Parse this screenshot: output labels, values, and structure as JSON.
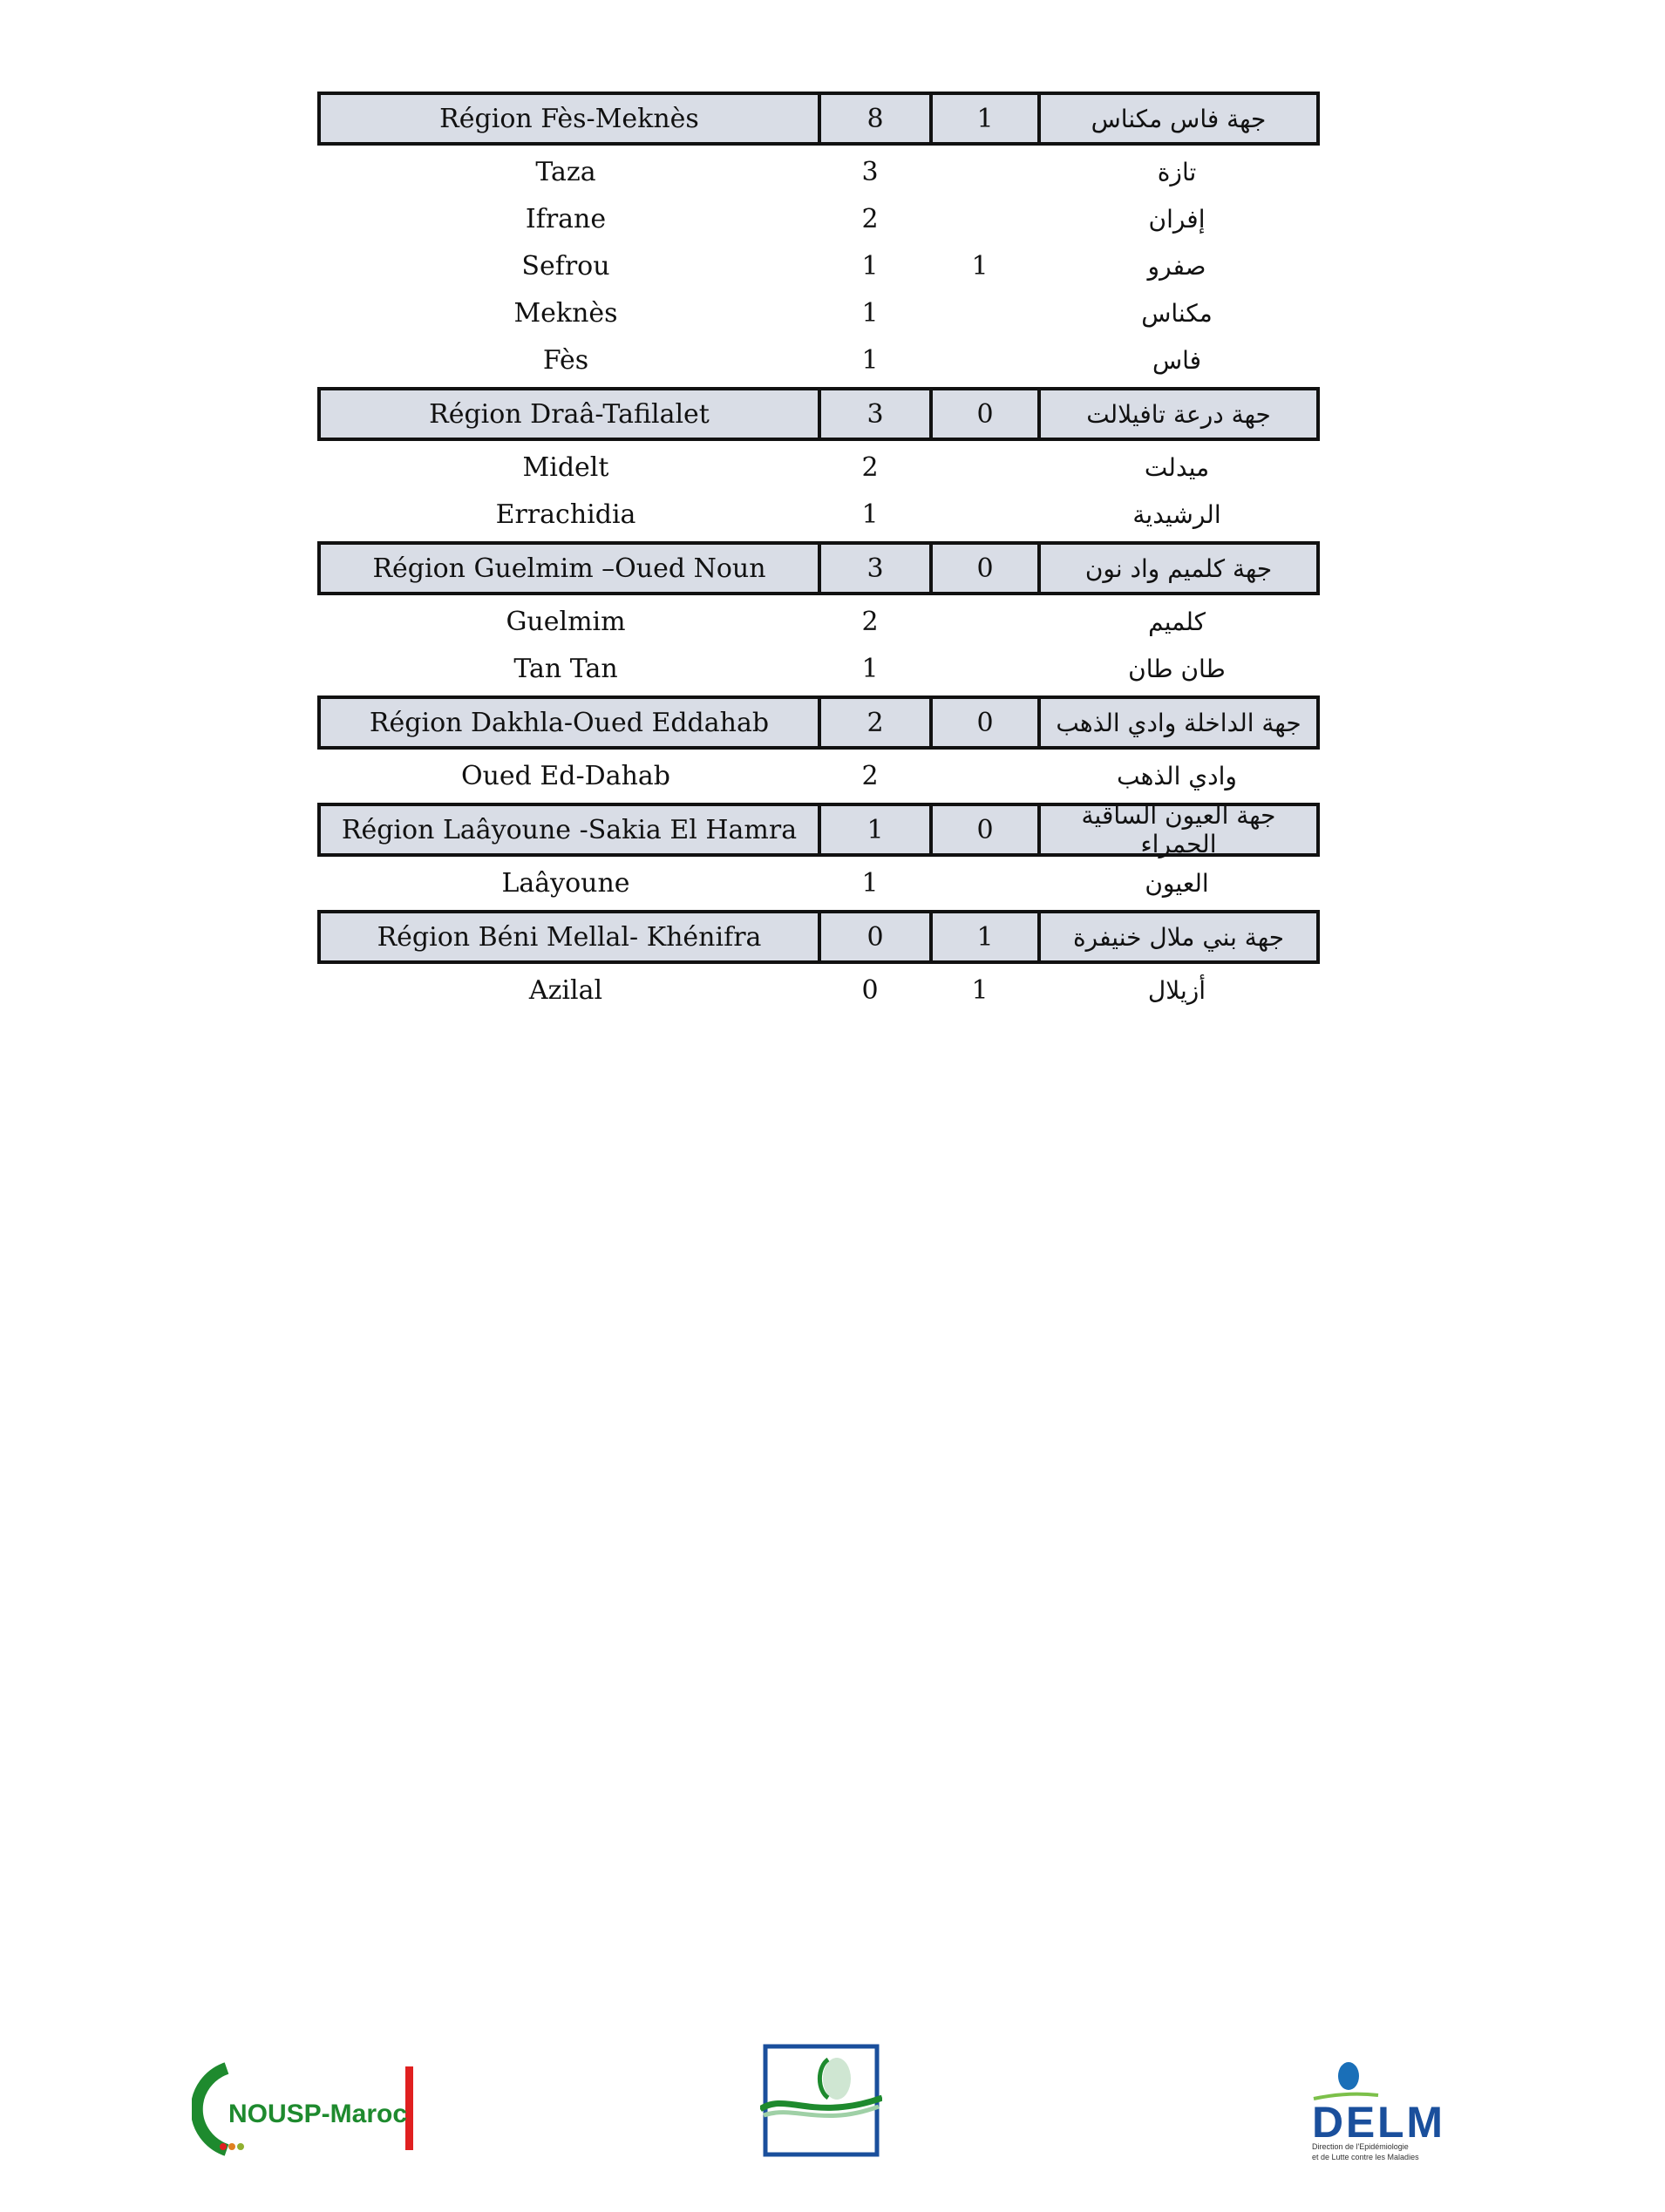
{
  "table": [
    {
      "type": "region",
      "fr": "Région Fès-Meknès",
      "a": "8",
      "b": "1",
      "ar": "جهة فاس مكناس"
    },
    {
      "type": "province",
      "fr": "Taza",
      "a": "3",
      "b": "",
      "ar": "تازة"
    },
    {
      "type": "province",
      "fr": "Ifrane",
      "a": "2",
      "b": "",
      "ar": "إفران"
    },
    {
      "type": "province",
      "fr": "Sefrou",
      "a": "1",
      "b": "1",
      "ar": "صفرو"
    },
    {
      "type": "province",
      "fr": "Meknès",
      "a": "1",
      "b": "",
      "ar": "مكناس"
    },
    {
      "type": "province",
      "fr": "Fès",
      "a": "1",
      "b": "",
      "ar": "فاس"
    },
    {
      "type": "region",
      "fr": "Région Draâ-Tafilalet",
      "a": "3",
      "b": "0",
      "ar": "جهة درعة تافيلالت"
    },
    {
      "type": "province",
      "fr": "Midelt",
      "a": "2",
      "b": "",
      "ar": "ميدلت"
    },
    {
      "type": "province",
      "fr": "Errachidia",
      "a": "1",
      "b": "",
      "ar": "الرشيدية"
    },
    {
      "type": "region",
      "fr": "Région Guelmim –Oued Noun",
      "a": "3",
      "b": "0",
      "ar": "جهة كلميم واد نون"
    },
    {
      "type": "province",
      "fr": "Guelmim",
      "a": "2",
      "b": "",
      "ar": "كلميم"
    },
    {
      "type": "province",
      "fr": "Tan Tan",
      "a": "1",
      "b": "",
      "ar": "طان طان"
    },
    {
      "type": "region",
      "fr": "Région Dakhla-Oued Eddahab",
      "a": "2",
      "b": "0",
      "ar": "جهة الداخلة وادي الذهب"
    },
    {
      "type": "province",
      "fr": "Oued Ed-Dahab",
      "a": "2",
      "b": "",
      "ar": "وادي الذهب"
    },
    {
      "type": "region",
      "fr": "Région Laâyoune -Sakia El Hamra",
      "a": "1",
      "b": "0",
      "ar": "جهة العيون الساقية الحمراء"
    },
    {
      "type": "province",
      "fr": "Laâyoune",
      "a": "1",
      "b": "",
      "ar": "العيون"
    },
    {
      "type": "region",
      "fr": "Région Béni Mellal- Khénifra",
      "a": "0",
      "b": "1",
      "ar": "جهة بني ملال خنيفرة"
    },
    {
      "type": "province",
      "fr": "Azilal",
      "a": "0",
      "b": "1",
      "ar": "أزيلال"
    }
  ],
  "footer": {
    "logo_left": "NOUSP-Maroc",
    "logo_right": "DELM",
    "logo_right_sub1": "Direction de l'Epidémiologie",
    "logo_right_sub2": "et de Lutte contre les Maladies",
    "colors": {
      "green": "#1e8a2e",
      "red": "#e02020",
      "blue": "#1a4f9c"
    }
  }
}
